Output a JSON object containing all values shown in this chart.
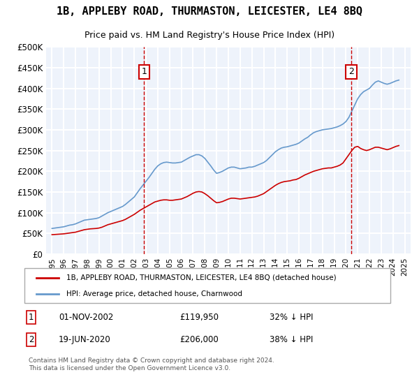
{
  "title": "1B, APPLEBY ROAD, THURMASTON, LEICESTER, LE4 8BQ",
  "subtitle": "Price paid vs. HM Land Registry's House Price Index (HPI)",
  "bg_color": "#eef3fb",
  "plot_bg_color": "#eef3fb",
  "red_line_color": "#cc0000",
  "blue_line_color": "#6699cc",
  "grid_color": "#ffffff",
  "ylabel": "",
  "xlabel": "",
  "ylim": [
    0,
    500000
  ],
  "yticks": [
    0,
    50000,
    100000,
    150000,
    200000,
    250000,
    300000,
    350000,
    400000,
    450000,
    500000
  ],
  "ytick_labels": [
    "£0",
    "£50K",
    "£100K",
    "£150K",
    "£200K",
    "£250K",
    "£300K",
    "£350K",
    "£400K",
    "£450K",
    "£500K"
  ],
  "legend_red": "1B, APPLEBY ROAD, THURMASTON, LEICESTER, LE4 8BQ (detached house)",
  "legend_blue": "HPI: Average price, detached house, Charnwood",
  "annotation1_date": "01-NOV-2002",
  "annotation1_price": "£119,950",
  "annotation1_hpi": "32% ↓ HPI",
  "annotation1_year": 2002.83,
  "annotation2_date": "19-JUN-2020",
  "annotation2_price": "£206,000",
  "annotation2_hpi": "38% ↓ HPI",
  "annotation2_year": 2020.46,
  "footer": "Contains HM Land Registry data © Crown copyright and database right 2024.\nThis data is licensed under the Open Government Licence v3.0.",
  "hpi_years": [
    1995,
    1995.25,
    1995.5,
    1995.75,
    1996,
    1996.25,
    1996.5,
    1996.75,
    1997,
    1997.25,
    1997.5,
    1997.75,
    1998,
    1998.25,
    1998.5,
    1998.75,
    1999,
    1999.25,
    1999.5,
    1999.75,
    2000,
    2000.25,
    2000.5,
    2000.75,
    2001,
    2001.25,
    2001.5,
    2001.75,
    2002,
    2002.25,
    2002.5,
    2002.75,
    2003,
    2003.25,
    2003.5,
    2003.75,
    2004,
    2004.25,
    2004.5,
    2004.75,
    2005,
    2005.25,
    2005.5,
    2005.75,
    2006,
    2006.25,
    2006.5,
    2006.75,
    2007,
    2007.25,
    2007.5,
    2007.75,
    2008,
    2008.25,
    2008.5,
    2008.75,
    2009,
    2009.25,
    2009.5,
    2009.75,
    2010,
    2010.25,
    2010.5,
    2010.75,
    2011,
    2011.25,
    2011.5,
    2011.75,
    2012,
    2012.25,
    2012.5,
    2012.75,
    2013,
    2013.25,
    2013.5,
    2013.75,
    2014,
    2014.25,
    2014.5,
    2014.75,
    2015,
    2015.25,
    2015.5,
    2015.75,
    2016,
    2016.25,
    2016.5,
    2016.75,
    2017,
    2017.25,
    2017.5,
    2017.75,
    2018,
    2018.25,
    2018.5,
    2018.75,
    2019,
    2019.25,
    2019.5,
    2019.75,
    2020,
    2020.25,
    2020.5,
    2020.75,
    2021,
    2021.25,
    2021.5,
    2021.75,
    2022,
    2022.25,
    2022.5,
    2022.75,
    2023,
    2023.25,
    2023.5,
    2023.75,
    2024,
    2024.25,
    2024.5
  ],
  "hpi_values": [
    62000,
    63000,
    64000,
    65000,
    66000,
    68000,
    70000,
    71000,
    73000,
    76000,
    79000,
    82000,
    83000,
    84000,
    85000,
    86000,
    88000,
    92000,
    96000,
    100000,
    103000,
    106000,
    109000,
    112000,
    115000,
    120000,
    126000,
    132000,
    138000,
    148000,
    158000,
    167000,
    176000,
    185000,
    195000,
    205000,
    213000,
    218000,
    221000,
    222000,
    221000,
    220000,
    220000,
    221000,
    222000,
    226000,
    230000,
    234000,
    237000,
    240000,
    240000,
    237000,
    231000,
    222000,
    213000,
    203000,
    195000,
    197000,
    200000,
    204000,
    208000,
    210000,
    210000,
    208000,
    206000,
    207000,
    208000,
    210000,
    210000,
    212000,
    215000,
    218000,
    221000,
    226000,
    233000,
    240000,
    247000,
    252000,
    256000,
    258000,
    259000,
    261000,
    263000,
    265000,
    268000,
    273000,
    278000,
    282000,
    288000,
    293000,
    296000,
    298000,
    300000,
    301000,
    302000,
    303000,
    305000,
    307000,
    310000,
    314000,
    320000,
    330000,
    345000,
    360000,
    375000,
    385000,
    392000,
    396000,
    400000,
    408000,
    415000,
    418000,
    415000,
    412000,
    410000,
    412000,
    415000,
    418000,
    420000
  ],
  "red_years": [
    1995,
    1995.25,
    1995.5,
    1995.75,
    1996,
    1996.25,
    1996.5,
    1996.75,
    1997,
    1997.25,
    1997.5,
    1997.75,
    1998,
    1998.25,
    1998.5,
    1998.75,
    1999,
    1999.25,
    1999.5,
    1999.75,
    2000,
    2000.25,
    2000.5,
    2000.75,
    2001,
    2001.25,
    2001.5,
    2001.75,
    2002,
    2002.25,
    2002.5,
    2002.75,
    2003,
    2003.25,
    2003.5,
    2003.75,
    2004,
    2004.25,
    2004.5,
    2004.75,
    2005,
    2005.25,
    2005.5,
    2005.75,
    2006,
    2006.25,
    2006.5,
    2006.75,
    2007,
    2007.25,
    2007.5,
    2007.75,
    2008,
    2008.25,
    2008.5,
    2008.75,
    2009,
    2009.25,
    2009.5,
    2009.75,
    2010,
    2010.25,
    2010.5,
    2010.75,
    2011,
    2011.25,
    2011.5,
    2011.75,
    2012,
    2012.25,
    2012.5,
    2012.75,
    2013,
    2013.25,
    2013.5,
    2013.75,
    2014,
    2014.25,
    2014.5,
    2014.75,
    2015,
    2015.25,
    2015.5,
    2015.75,
    2016,
    2016.25,
    2016.5,
    2016.75,
    2017,
    2017.25,
    2017.5,
    2017.75,
    2018,
    2018.25,
    2018.5,
    2018.75,
    2019,
    2019.25,
    2019.5,
    2019.75,
    2020,
    2020.25,
    2020.5,
    2020.75,
    2021,
    2021.25,
    2021.5,
    2021.75,
    2022,
    2022.25,
    2022.5,
    2022.75,
    2023,
    2023.25,
    2023.5,
    2023.75,
    2024,
    2024.25,
    2024.5
  ],
  "red_values": [
    47000,
    47500,
    48000,
    48500,
    49000,
    50000,
    51000,
    52000,
    53000,
    55000,
    57000,
    59000,
    60000,
    61000,
    61500,
    62000,
    63000,
    65000,
    68000,
    71000,
    73000,
    75000,
    77000,
    79000,
    81000,
    84000,
    88000,
    92000,
    96000,
    101000,
    106000,
    110000,
    114000,
    118000,
    122000,
    126000,
    128000,
    130000,
    131000,
    131000,
    130000,
    130000,
    131000,
    132000,
    133000,
    136000,
    139000,
    143000,
    147000,
    150000,
    151000,
    150000,
    146000,
    141000,
    135000,
    129000,
    124000,
    125000,
    127000,
    130000,
    133000,
    135000,
    135000,
    134000,
    133000,
    134000,
    135000,
    136000,
    137000,
    138000,
    140000,
    143000,
    146000,
    151000,
    156000,
    161000,
    166000,
    170000,
    173000,
    175000,
    176000,
    177000,
    179000,
    180000,
    183000,
    187000,
    191000,
    194000,
    197000,
    200000,
    202000,
    204000,
    206000,
    207000,
    208000,
    208000,
    210000,
    212000,
    215000,
    220000,
    230000,
    240000,
    250000,
    258000,
    260000,
    255000,
    252000,
    250000,
    252000,
    255000,
    258000,
    258000,
    256000,
    254000,
    252000,
    254000,
    257000,
    260000,
    262000
  ]
}
